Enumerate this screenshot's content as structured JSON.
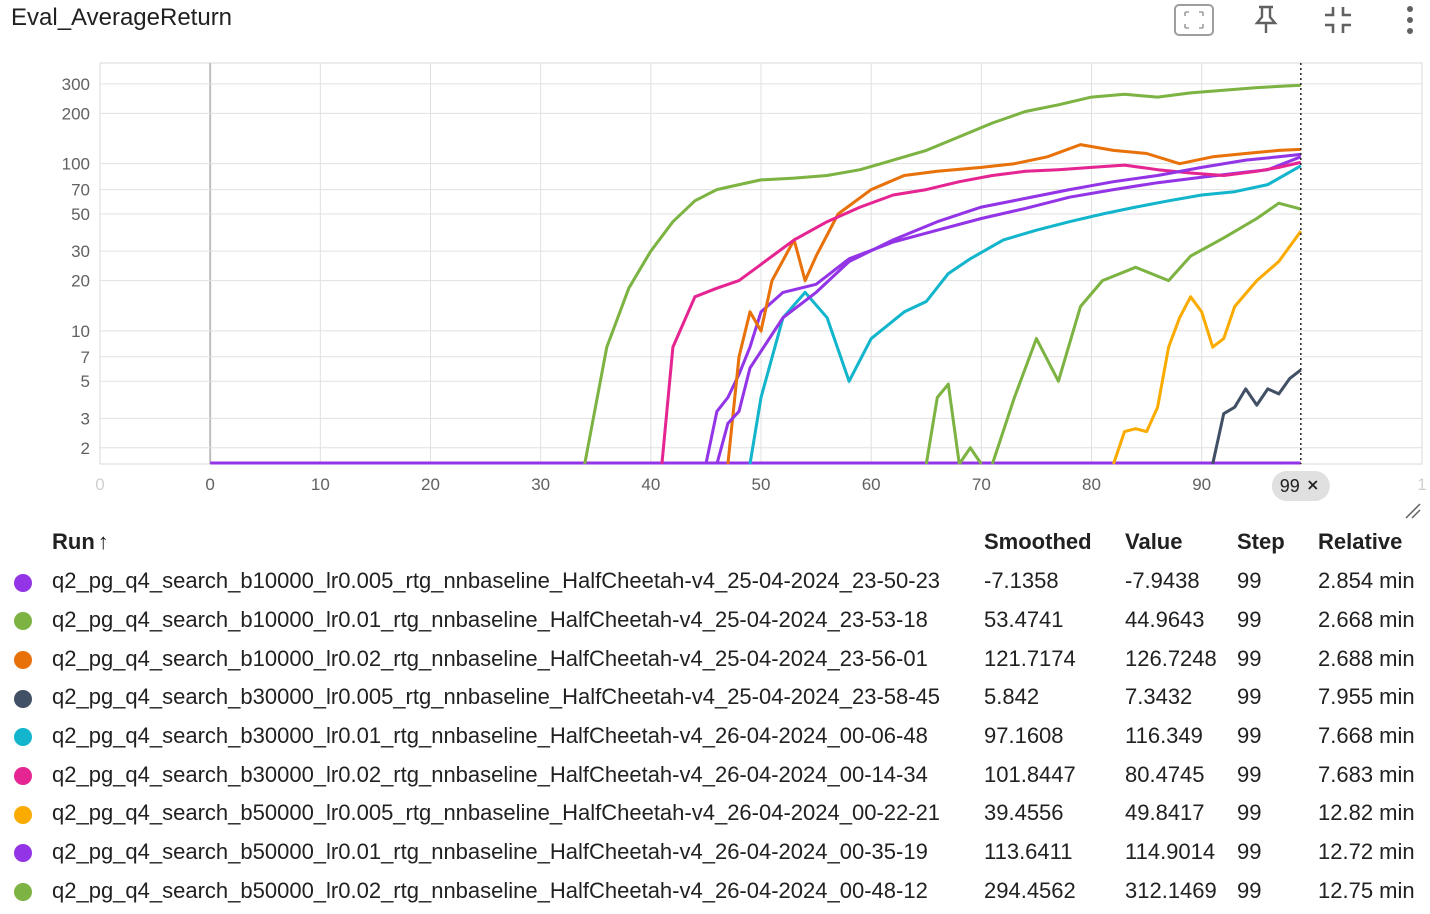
{
  "header": {
    "title": "Eval_AverageReturn",
    "tools": [
      {
        "name": "fit-domain-icon"
      },
      {
        "name": "pin-icon"
      },
      {
        "name": "exit-fullscreen-icon"
      },
      {
        "name": "more-vert-icon"
      }
    ]
  },
  "chart_data": {
    "type": "line",
    "title": "",
    "xlabel": "",
    "ylabel": "",
    "y_scale": "log",
    "xlim": [
      -10,
      110
    ],
    "ylim": [
      1.6,
      400
    ],
    "x_ticks": [
      "0",
      "0",
      "10",
      "20",
      "30",
      "40",
      "50",
      "60",
      "70",
      "80",
      "90",
      "1"
    ],
    "y_ticks": [
      "300",
      "200",
      "100",
      "70",
      "50",
      "30",
      "20",
      "10",
      "7",
      "5",
      "3",
      "2"
    ],
    "hover_step_label": "99",
    "grid": true,
    "series": [
      {
        "color": "#9334e6",
        "smoothed": [
          [
            45,
            1.6
          ],
          [
            46,
            3.3
          ],
          [
            47,
            4
          ],
          [
            48,
            5.5
          ],
          [
            49,
            8
          ],
          [
            50,
            13
          ],
          [
            52,
            17
          ],
          [
            55,
            19
          ],
          [
            58,
            27
          ],
          [
            62,
            34
          ],
          [
            66,
            40
          ],
          [
            70,
            47
          ],
          [
            74,
            54
          ],
          [
            78,
            63
          ],
          [
            82,
            70
          ],
          [
            86,
            77
          ],
          [
            90,
            83
          ],
          [
            94,
            89
          ],
          [
            96,
            92
          ],
          [
            99,
            110
          ]
        ]
      },
      {
        "color": "#7cb342",
        "smoothed": [
          [
            68,
            1.6
          ],
          [
            69,
            2.0
          ],
          [
            70,
            1.6
          ]
        ]
      },
      {
        "color": "#7cb342",
        "smoothed": [
          [
            65,
            1.6
          ],
          [
            66,
            4
          ],
          [
            67,
            4.8
          ],
          [
            68,
            1.6
          ]
        ]
      },
      {
        "color": "#7cb342",
        "smoothed": [
          [
            71,
            1.6
          ],
          [
            73,
            4
          ],
          [
            75,
            9
          ],
          [
            77,
            5
          ],
          [
            79,
            14
          ],
          [
            81,
            20
          ],
          [
            84,
            24
          ],
          [
            87,
            20
          ],
          [
            89,
            28
          ],
          [
            92,
            36
          ],
          [
            95,
            47
          ],
          [
            97,
            58
          ],
          [
            99,
            53.4741
          ]
        ]
      },
      {
        "color": "#e8710a",
        "smoothed": [
          [
            47,
            1.6
          ],
          [
            48,
            7
          ],
          [
            49,
            13
          ],
          [
            50,
            10
          ],
          [
            51,
            20
          ],
          [
            53,
            35
          ],
          [
            54,
            20
          ],
          [
            55,
            28
          ],
          [
            57,
            50
          ],
          [
            60,
            70
          ],
          [
            63,
            85
          ],
          [
            66,
            90
          ],
          [
            70,
            95
          ],
          [
            73,
            100
          ],
          [
            76,
            110
          ],
          [
            79,
            130
          ],
          [
            82,
            120
          ],
          [
            85,
            115
          ],
          [
            88,
            100
          ],
          [
            91,
            110
          ],
          [
            94,
            115
          ],
          [
            97,
            120
          ],
          [
            99,
            121.7174
          ]
        ]
      },
      {
        "color": "#425066",
        "smoothed": [
          [
            91,
            1.6
          ],
          [
            92,
            3.2
          ],
          [
            93,
            3.5
          ],
          [
            94,
            4.5
          ],
          [
            95,
            3.6
          ],
          [
            96,
            4.5
          ],
          [
            97,
            4.2
          ],
          [
            98,
            5.2
          ],
          [
            99,
            5.842
          ]
        ]
      },
      {
        "color": "#12b5cb",
        "smoothed": [
          [
            49,
            1.6
          ],
          [
            50,
            4
          ],
          [
            52,
            12
          ],
          [
            54,
            17
          ],
          [
            56,
            12
          ],
          [
            58,
            5
          ],
          [
            60,
            9
          ],
          [
            63,
            13
          ],
          [
            65,
            15
          ],
          [
            67,
            22
          ],
          [
            69,
            27
          ],
          [
            72,
            35
          ],
          [
            75,
            40
          ],
          [
            78,
            45
          ],
          [
            81,
            50
          ],
          [
            84,
            55
          ],
          [
            87,
            60
          ],
          [
            90,
            65
          ],
          [
            93,
            68
          ],
          [
            96,
            75
          ],
          [
            99,
            97.1608
          ]
        ]
      },
      {
        "color": "#e52592",
        "smoothed": [
          [
            41,
            1.6
          ],
          [
            42,
            8
          ],
          [
            44,
            16
          ],
          [
            46,
            18
          ],
          [
            48,
            20
          ],
          [
            50,
            25
          ],
          [
            53,
            35
          ],
          [
            56,
            45
          ],
          [
            59,
            55
          ],
          [
            62,
            65
          ],
          [
            65,
            70
          ],
          [
            68,
            78
          ],
          [
            71,
            85
          ],
          [
            74,
            90
          ],
          [
            77,
            92
          ],
          [
            80,
            95
          ],
          [
            83,
            98
          ],
          [
            86,
            92
          ],
          [
            89,
            88
          ],
          [
            92,
            85
          ],
          [
            95,
            90
          ],
          [
            97,
            95
          ],
          [
            99,
            101.8447
          ]
        ]
      },
      {
        "color": "#f9ab00",
        "smoothed": [
          [
            82,
            1.6
          ],
          [
            83,
            2.5
          ],
          [
            84,
            2.6
          ],
          [
            85,
            2.5
          ],
          [
            86,
            3.5
          ],
          [
            87,
            8
          ],
          [
            88,
            12
          ],
          [
            89,
            16
          ],
          [
            90,
            13
          ],
          [
            91,
            8
          ],
          [
            92,
            9
          ],
          [
            93,
            14
          ],
          [
            95,
            20
          ],
          [
            97,
            26
          ],
          [
            99,
            39.4556
          ]
        ]
      },
      {
        "color": "#9334e6",
        "smoothed": [
          [
            46,
            1.6
          ],
          [
            47,
            2.8
          ],
          [
            48,
            3.3
          ],
          [
            49,
            6
          ],
          [
            52,
            12
          ],
          [
            55,
            17
          ],
          [
            58,
            26
          ],
          [
            62,
            35
          ],
          [
            66,
            45
          ],
          [
            70,
            55
          ],
          [
            74,
            62
          ],
          [
            78,
            70
          ],
          [
            82,
            78
          ],
          [
            86,
            85
          ],
          [
            90,
            95
          ],
          [
            94,
            105
          ],
          [
            97,
            110
          ],
          [
            99,
            113.6411
          ]
        ]
      },
      {
        "color": "#7cb342",
        "smoothed": [
          [
            34,
            1.6
          ],
          [
            36,
            8
          ],
          [
            38,
            18
          ],
          [
            40,
            30
          ],
          [
            42,
            45
          ],
          [
            44,
            60
          ],
          [
            46,
            70
          ],
          [
            48,
            75
          ],
          [
            50,
            80
          ],
          [
            53,
            82
          ],
          [
            56,
            85
          ],
          [
            59,
            92
          ],
          [
            62,
            105
          ],
          [
            65,
            120
          ],
          [
            68,
            145
          ],
          [
            71,
            175
          ],
          [
            74,
            205
          ],
          [
            77,
            225
          ],
          [
            80,
            250
          ],
          [
            83,
            260
          ],
          [
            86,
            250
          ],
          [
            89,
            265
          ],
          [
            92,
            275
          ],
          [
            95,
            285
          ],
          [
            97,
            290
          ],
          [
            99,
            294.4562
          ]
        ]
      }
    ]
  },
  "table": {
    "headers": {
      "run": "Run",
      "sort_arrow": "↑",
      "smoothed": "Smoothed",
      "value": "Value",
      "step": "Step",
      "relative": "Relative"
    },
    "rows": [
      {
        "color": "#9334e6",
        "run": "q2_pg_q4_search_b10000_lr0.005_rtg_nnbaseline_HalfCheetah-v4_25-04-2024_23-50-23",
        "smoothed": "-7.1358",
        "value": "-7.9438",
        "step": "99",
        "relative": "2.854 min"
      },
      {
        "color": "#7cb342",
        "run": "q2_pg_q4_search_b10000_lr0.01_rtg_nnbaseline_HalfCheetah-v4_25-04-2024_23-53-18",
        "smoothed": "53.4741",
        "value": "44.9643",
        "step": "99",
        "relative": "2.668 min"
      },
      {
        "color": "#e8710a",
        "run": "q2_pg_q4_search_b10000_lr0.02_rtg_nnbaseline_HalfCheetah-v4_25-04-2024_23-56-01",
        "smoothed": "121.7174",
        "value": "126.7248",
        "step": "99",
        "relative": "2.688 min"
      },
      {
        "color": "#425066",
        "run": "q2_pg_q4_search_b30000_lr0.005_rtg_nnbaseline_HalfCheetah-v4_25-04-2024_23-58-45",
        "smoothed": "5.842",
        "value": "7.3432",
        "step": "99",
        "relative": "7.955 min"
      },
      {
        "color": "#12b5cb",
        "run": "q2_pg_q4_search_b30000_lr0.01_rtg_nnbaseline_HalfCheetah-v4_26-04-2024_00-06-48",
        "smoothed": "97.1608",
        "value": "116.349",
        "step": "99",
        "relative": "7.668 min"
      },
      {
        "color": "#e52592",
        "run": "q2_pg_q4_search_b30000_lr0.02_rtg_nnbaseline_HalfCheetah-v4_26-04-2024_00-14-34",
        "smoothed": "101.8447",
        "value": "80.4745",
        "step": "99",
        "relative": "7.683 min"
      },
      {
        "color": "#f9ab00",
        "run": "q2_pg_q4_search_b50000_lr0.005_rtg_nnbaseline_HalfCheetah-v4_26-04-2024_00-22-21",
        "smoothed": "39.4556",
        "value": "49.8417",
        "step": "99",
        "relative": "12.82 min"
      },
      {
        "color": "#9334e6",
        "run": "q2_pg_q4_search_b50000_lr0.01_rtg_nnbaseline_HalfCheetah-v4_26-04-2024_00-35-19",
        "smoothed": "113.6411",
        "value": "114.9014",
        "step": "99",
        "relative": "12.72 min"
      },
      {
        "color": "#7cb342",
        "run": "q2_pg_q4_search_b50000_lr0.02_rtg_nnbaseline_HalfCheetah-v4_26-04-2024_00-48-12",
        "smoothed": "294.4562",
        "value": "312.1469",
        "step": "99",
        "relative": "12.75 min"
      }
    ]
  }
}
